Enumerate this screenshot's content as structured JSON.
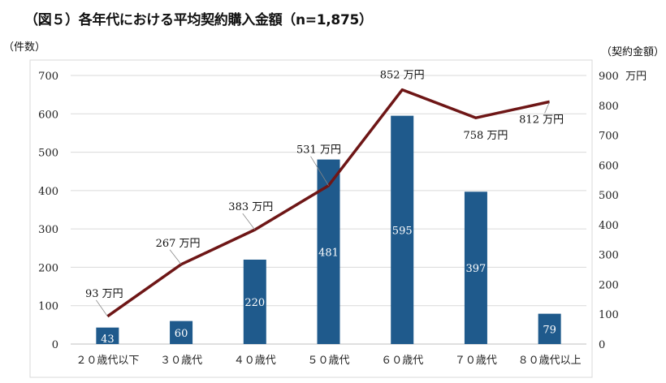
{
  "chart_data": {
    "type": "bar+line",
    "title": "（図５）各年代における平均契約購入金額（n=1,875）",
    "ylabel_left": "（件数）",
    "ylabel_right": "（契約金額）",
    "categories": [
      "２０歳代以下",
      "３０歳代",
      "４０歳代",
      "５０歳代",
      "６０歳代",
      "７０歳代",
      "８０歳代以上"
    ],
    "ylim_left": [
      0,
      700
    ],
    "yticks_left": [
      "0",
      "100",
      "200",
      "300",
      "400",
      "500",
      "600",
      "700"
    ],
    "ylim_right": [
      0,
      900
    ],
    "yticks_right": [
      "0",
      "100",
      "200",
      "300",
      "400",
      "500",
      "600",
      "700",
      "800",
      "900  万円"
    ],
    "grid": true,
    "series": [
      {
        "type": "bar",
        "axis": "left",
        "values": [
          43,
          60,
          220,
          481,
          595,
          397,
          79
        ],
        "labels": [
          "43",
          "60",
          "220",
          "481",
          "595",
          "397",
          "79"
        ],
        "color": "#1f5a8c"
      },
      {
        "type": "line",
        "axis": "right",
        "values": [
          93,
          267,
          383,
          531,
          852,
          758,
          812
        ],
        "labels": [
          "93 万円",
          "267 万円",
          "383 万円",
          "531 万円",
          "852 万円",
          "758 万円",
          "812 万円"
        ],
        "color": "#6e1616"
      }
    ]
  }
}
